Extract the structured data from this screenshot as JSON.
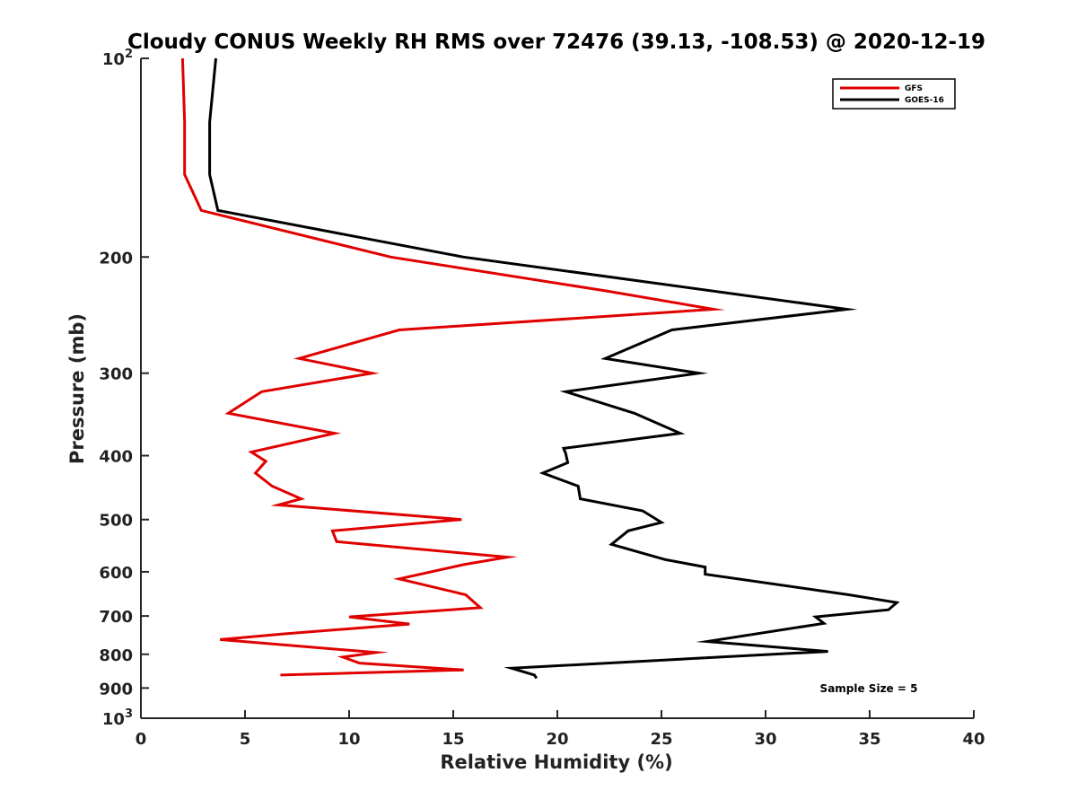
{
  "chart_data": {
    "type": "line",
    "title": "Cloudy CONUS Weekly RH RMS over 72476 (39.13, -108.53) @ 2020-12-19",
    "xlabel": "Relative Humidity (%)",
    "ylabel": "Pressure (mb)",
    "xlim": [
      0,
      40
    ],
    "ylim": [
      100,
      1000
    ],
    "yscale": "log",
    "y_reversed": true,
    "grid": false,
    "legend_position": "top-right",
    "x_ticks": [
      0,
      5,
      10,
      15,
      20,
      25,
      30,
      35,
      40
    ],
    "x_tick_labels": [
      "0",
      "5",
      "10",
      "15",
      "20",
      "25",
      "30",
      "35",
      "40"
    ],
    "y_ticks": [
      100,
      200,
      300,
      400,
      500,
      600,
      700,
      800,
      900,
      1000
    ],
    "y_tick_labels": [
      "10^2",
      "200",
      "300",
      "400",
      "500",
      "600",
      "700",
      "800",
      "900",
      "10^3"
    ],
    "annotation": "Sample Size = 5",
    "series": [
      {
        "name": "GFS",
        "color": "#e00000",
        "points": [
          [
            2.0,
            100
          ],
          [
            2.1,
            125
          ],
          [
            2.1,
            150
          ],
          [
            2.9,
            170
          ],
          [
            12.0,
            200
          ],
          [
            22.3,
            225
          ],
          [
            27.5,
            240
          ],
          [
            12.4,
            258
          ],
          [
            7.6,
            285
          ],
          [
            11.1,
            300
          ],
          [
            5.8,
            320
          ],
          [
            4.2,
            345
          ],
          [
            9.3,
            370
          ],
          [
            5.3,
            395
          ],
          [
            6.0,
            408
          ],
          [
            5.5,
            425
          ],
          [
            6.3,
            445
          ],
          [
            7.7,
            465
          ],
          [
            6.6,
            475
          ],
          [
            15.4,
            500
          ],
          [
            9.2,
            520
          ],
          [
            9.4,
            540
          ],
          [
            17.6,
            570
          ],
          [
            15.5,
            585
          ],
          [
            12.4,
            615
          ],
          [
            15.6,
            650
          ],
          [
            16.3,
            680
          ],
          [
            10.0,
            702
          ],
          [
            12.9,
            720
          ],
          [
            6.9,
            745
          ],
          [
            3.8,
            760
          ],
          [
            11.3,
            795
          ],
          [
            9.7,
            808
          ],
          [
            10.5,
            825
          ],
          [
            15.5,
            845
          ],
          [
            6.7,
            860
          ]
        ]
      },
      {
        "name": "GOES-16",
        "color": "#000000",
        "points": [
          [
            3.6,
            100
          ],
          [
            3.3,
            125
          ],
          [
            3.3,
            150
          ],
          [
            3.7,
            170
          ],
          [
            15.5,
            200
          ],
          [
            33.9,
            240
          ],
          [
            25.5,
            258
          ],
          [
            22.3,
            285
          ],
          [
            26.8,
            300
          ],
          [
            20.4,
            320
          ],
          [
            23.7,
            345
          ],
          [
            25.9,
            370
          ],
          [
            20.3,
            390
          ],
          [
            20.4,
            397
          ],
          [
            20.5,
            410
          ],
          [
            19.3,
            425
          ],
          [
            21.0,
            445
          ],
          [
            21.1,
            465
          ],
          [
            24.1,
            485
          ],
          [
            25.0,
            505
          ],
          [
            23.4,
            520
          ],
          [
            22.6,
            545
          ],
          [
            25.2,
            575
          ],
          [
            27.1,
            590
          ],
          [
            27.1,
            605
          ],
          [
            34.0,
            650
          ],
          [
            36.3,
            668
          ],
          [
            35.9,
            685
          ],
          [
            32.4,
            702
          ],
          [
            32.8,
            718
          ],
          [
            27.2,
            765
          ],
          [
            33.0,
            792
          ],
          [
            27.8,
            808
          ],
          [
            17.8,
            840
          ],
          [
            18.9,
            860
          ],
          [
            19.0,
            870
          ]
        ]
      }
    ]
  }
}
